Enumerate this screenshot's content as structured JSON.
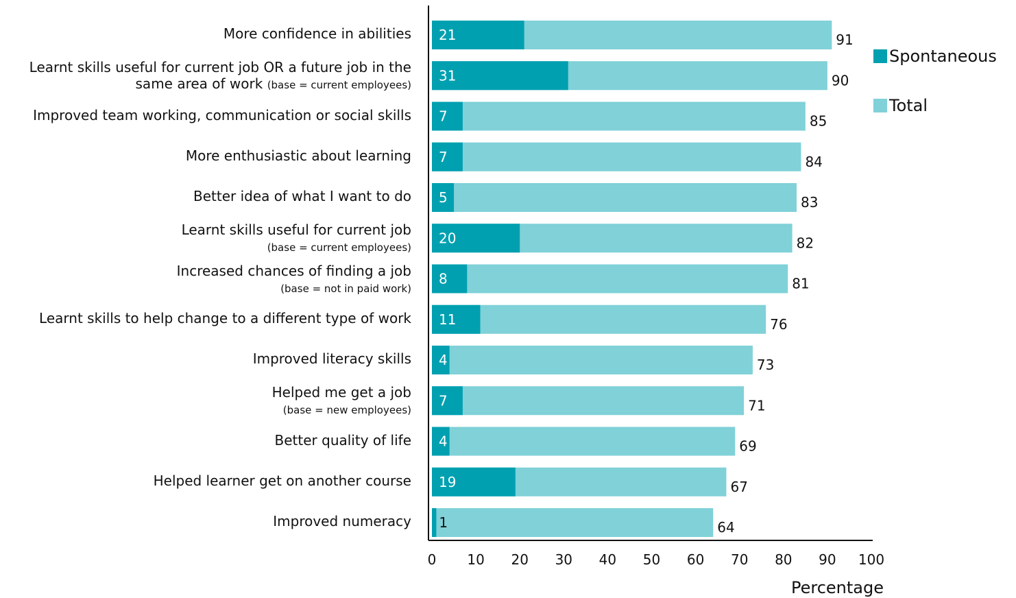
{
  "chart_data": {
    "type": "bar",
    "orientation": "horizontal",
    "stacked": "overlay",
    "categories": [
      {
        "main": "More confidence in abilities",
        "line2": "",
        "sub": ""
      },
      {
        "main": "Learnt skills useful for current job OR a future job in the",
        "line2": "same area of work",
        "sub": "(base = current employees)"
      },
      {
        "main": "Improved team working, communication or social skills",
        "line2": "",
        "sub": ""
      },
      {
        "main": "More enthusiastic about learning",
        "line2": "",
        "sub": ""
      },
      {
        "main": "Better idea of what I want to do",
        "line2": "",
        "sub": ""
      },
      {
        "main": "Learnt skills useful for current job",
        "line2": "",
        "sub": "(base = current employees)"
      },
      {
        "main": "Increased chances of finding a job",
        "line2": "",
        "sub": "(base = not in paid work)"
      },
      {
        "main": "Learnt skills to help change to a different type of work",
        "line2": "",
        "sub": ""
      },
      {
        "main": "Improved literacy skills",
        "line2": "",
        "sub": ""
      },
      {
        "main": "Helped me get a job",
        "line2": "",
        "sub": "(base = new employees)"
      },
      {
        "main": "Better quality of life",
        "line2": "",
        "sub": ""
      },
      {
        "main": "Helped learner get on another course",
        "line2": "",
        "sub": ""
      },
      {
        "main": "Improved numeracy",
        "line2": "",
        "sub": ""
      }
    ],
    "series": [
      {
        "name": "Spontaneous",
        "color": "#00a0b0",
        "values": [
          21,
          31,
          7,
          7,
          5,
          20,
          8,
          11,
          4,
          7,
          4,
          19,
          1
        ]
      },
      {
        "name": "Total",
        "color": "#80d1d8",
        "values": [
          91,
          90,
          85,
          84,
          83,
          82,
          81,
          76,
          73,
          71,
          69,
          67,
          64
        ]
      }
    ],
    "xlabel": "Percentage",
    "xlim": [
      0,
      100
    ],
    "xticks": [
      "0",
      "10",
      "20",
      "30",
      "40",
      "50",
      "60",
      "70",
      "80",
      "90",
      "100"
    ],
    "legend_position": "top-right",
    "grid": false
  }
}
